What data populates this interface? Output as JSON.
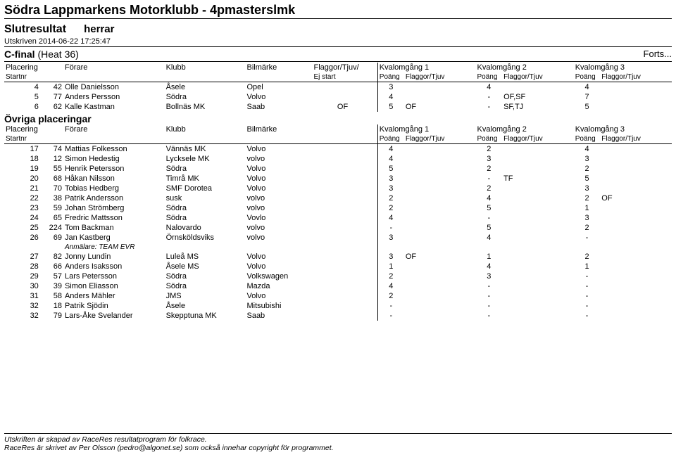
{
  "header": {
    "title": "Södra Lappmarkens Motorklubb - 4pmasterslmk",
    "subtitle1": "Slutresultat",
    "subtitle2": "herrar",
    "printed": "Utskriven 2014-06-22 17:25:47",
    "heat_label": "C-final",
    "heat_paren": "(Heat   36)",
    "forts": "Forts..."
  },
  "cols": {
    "placering": "Placering",
    "startnr": "Startnr",
    "forare": "Förare",
    "klubb": "Klubb",
    "bilmarke": "Bilmärke",
    "flaggor_tjuv": "Flaggor/Tjuv/",
    "ej_start": "Ej start",
    "kval1": "Kvalomgång 1",
    "kval2": "Kvalomgång 2",
    "kval3": "Kvalomgång 3",
    "poang": "Poäng",
    "flaggor": "Flaggor/Tjuv"
  },
  "section2_label": "Övriga placeringar",
  "rows1": [
    {
      "plac": "4",
      "nr": "42",
      "forare": "Olle Danielsson",
      "klubb": "Åsele",
      "bil": "Opel",
      "flag": "",
      "p1": "3",
      "f1": "",
      "p2": "4",
      "f2": "",
      "p3": "4",
      "f3": ""
    },
    {
      "plac": "5",
      "nr": "77",
      "forare": "Anders Persson",
      "klubb": "Södra",
      "bil": "Volvo",
      "flag": "",
      "p1": "4",
      "f1": "",
      "p2": "-",
      "f2": "OF,SF",
      "p3": "7",
      "f3": ""
    },
    {
      "plac": "6",
      "nr": "62",
      "forare": "Kalle Kastman",
      "klubb": "Bollnäs MK",
      "bil": "Saab",
      "flag": "OF",
      "p1": "5",
      "f1": "OF",
      "p2": "-",
      "f2": "SF,TJ",
      "p3": "5",
      "f3": ""
    }
  ],
  "rows2": [
    {
      "plac": "17",
      "nr": "74",
      "forare": "Mattias Folkesson",
      "klubb": "Vännäs MK",
      "bil": "Volvo",
      "p1": "4",
      "f1": "",
      "p2": "2",
      "f2": "",
      "p3": "4",
      "f3": ""
    },
    {
      "plac": "18",
      "nr": "12",
      "forare": "Simon Hedestig",
      "klubb": "Lycksele MK",
      "bil": "volvo",
      "p1": "4",
      "f1": "",
      "p2": "3",
      "f2": "",
      "p3": "3",
      "f3": ""
    },
    {
      "plac": "19",
      "nr": "55",
      "forare": "Henrik Petersson",
      "klubb": "Södra",
      "bil": "Volvo",
      "p1": "5",
      "f1": "",
      "p2": "2",
      "f2": "",
      "p3": "2",
      "f3": ""
    },
    {
      "plac": "20",
      "nr": "68",
      "forare": "Håkan Nilsson",
      "klubb": "Timrå MK",
      "bil": "Volvo",
      "p1": "3",
      "f1": "",
      "p2": "-",
      "f2": "TF",
      "p3": "5",
      "f3": ""
    },
    {
      "plac": "21",
      "nr": "70",
      "forare": "Tobias Hedberg",
      "klubb": "SMF Dorotea",
      "bil": "Volvo",
      "p1": "3",
      "f1": "",
      "p2": "2",
      "f2": "",
      "p3": "3",
      "f3": ""
    },
    {
      "plac": "22",
      "nr": "38",
      "forare": "Patrik Andersson",
      "klubb": "susk",
      "bil": "volvo",
      "p1": "2",
      "f1": "",
      "p2": "4",
      "f2": "",
      "p3": "2",
      "f3": "OF"
    },
    {
      "plac": "23",
      "nr": "59",
      "forare": "Johan Strömberg",
      "klubb": "Södra",
      "bil": "volvo",
      "p1": "2",
      "f1": "",
      "p2": "5",
      "f2": "",
      "p3": "1",
      "f3": ""
    },
    {
      "plac": "24",
      "nr": "65",
      "forare": "Fredric Mattsson",
      "klubb": "Södra",
      "bil": "Vovlo",
      "p1": "4",
      "f1": "",
      "p2": "-",
      "f2": "",
      "p3": "3",
      "f3": ""
    },
    {
      "plac": "25",
      "nr": "224",
      "forare": "Tom Backman",
      "klubb": "Nalovardo",
      "bil": "volvo",
      "p1": "-",
      "f1": "",
      "p2": "5",
      "f2": "",
      "p3": "2",
      "f3": ""
    },
    {
      "plac": "26",
      "nr": "69",
      "forare": "Jan Kastberg",
      "klubb": "Örnsköldsviks",
      "bil": "volvo",
      "anm": "Anmälare: TEAM EVR",
      "p1": "3",
      "f1": "",
      "p2": "4",
      "f2": "",
      "p3": "-",
      "f3": ""
    },
    {
      "plac": "27",
      "nr": "82",
      "forare": "Jonny Lundin",
      "klubb": "Luleå MS",
      "bil": "Volvo",
      "p1": "3",
      "f1": "OF",
      "p2": "1",
      "f2": "",
      "p3": "2",
      "f3": ""
    },
    {
      "plac": "28",
      "nr": "66",
      "forare": "Anders Isaksson",
      "klubb": "Åsele MS",
      "bil": "Volvo",
      "p1": "1",
      "f1": "",
      "p2": "4",
      "f2": "",
      "p3": "1",
      "f3": ""
    },
    {
      "plac": "29",
      "nr": "57",
      "forare": "Lars Petersson",
      "klubb": "Södra",
      "bil": "Volkswagen",
      "p1": "2",
      "f1": "",
      "p2": "3",
      "f2": "",
      "p3": "-",
      "f3": ""
    },
    {
      "plac": "30",
      "nr": "39",
      "forare": "Simon Eliasson",
      "klubb": "Södra",
      "bil": "Mazda",
      "p1": "4",
      "f1": "",
      "p2": "-",
      "f2": "",
      "p3": "-",
      "f3": ""
    },
    {
      "plac": "31",
      "nr": "58",
      "forare": "Anders Mähler",
      "klubb": "JMS",
      "bil": "Volvo",
      "p1": "2",
      "f1": "",
      "p2": "-",
      "f2": "",
      "p3": "-",
      "f3": ""
    },
    {
      "plac": "32",
      "nr": "18",
      "forare": "Patrik Sjödin",
      "klubb": "Åsele",
      "bil": "Mitsubishi",
      "p1": "-",
      "f1": "",
      "p2": "-",
      "f2": "",
      "p3": "-",
      "f3": ""
    },
    {
      "plac": "32",
      "nr": "79",
      "forare": "Lars-Åke Svelander",
      "klubb": "Skepptuna MK",
      "bil": "Saab",
      "p1": "-",
      "f1": "",
      "p2": "-",
      "f2": "",
      "p3": "-",
      "f3": ""
    }
  ],
  "footer": {
    "line1": "Utskriften är skapad av RaceRes resultatprogram för folkrace.",
    "line2": "RaceRes är skrivet av Per Olsson (pedro@algonet.se) som också innehar copyright för programmet."
  }
}
